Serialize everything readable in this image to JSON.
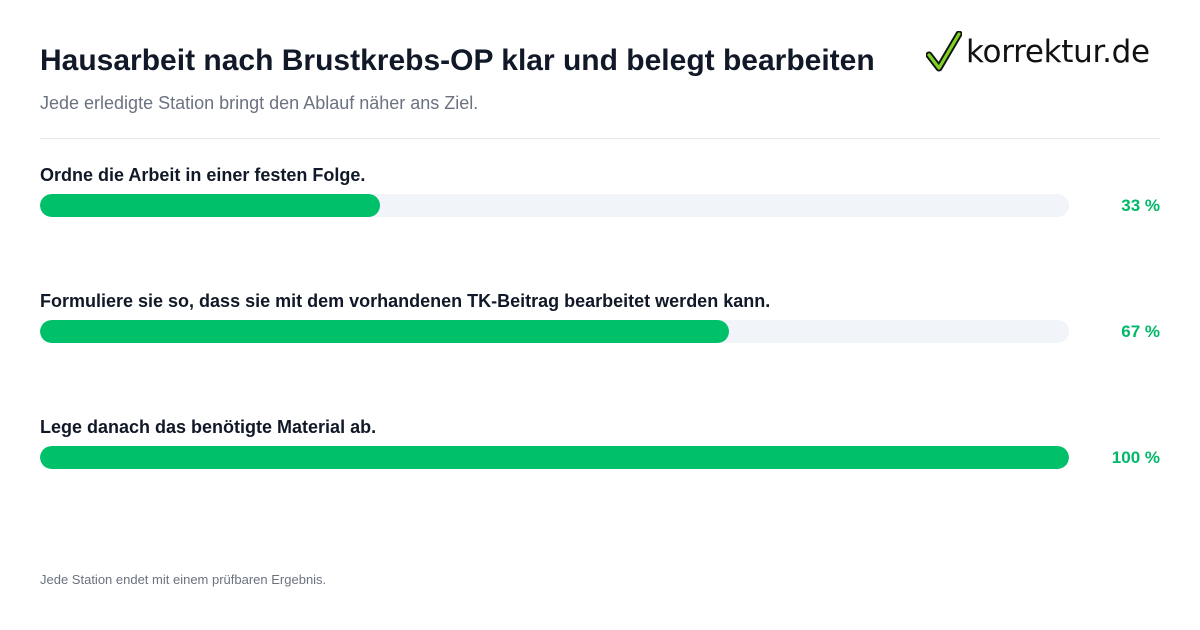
{
  "header": {
    "title": "Hausarbeit nach Brustkrebs-OP klar und belegt bearbeiten",
    "subtitle": "Jede erledigte Station bringt den Ablauf näher ans Ziel."
  },
  "logo": {
    "text": "korrektur.de",
    "icon": "checkmark-icon"
  },
  "steps": [
    {
      "label": "Ordne die Arbeit in einer festen Folge.",
      "progress": 0.33,
      "percent_label": "33 %"
    },
    {
      "label": "Formuliere sie so, dass sie mit dem vorhandenen TK-Beitrag bearbeitet werden kann.",
      "progress": 0.67,
      "percent_label": "67 %"
    },
    {
      "label": "Lege danach das benötigte Material ab.",
      "progress": 1.0,
      "percent_label": "100 %"
    }
  ],
  "footer": {
    "note": "Jede Station endet mit einem prüfbaren Ergebnis."
  },
  "colors": {
    "accent": "#00c16a",
    "track": "#f1f5f9",
    "text": "#111827",
    "muted": "#6b7280"
  }
}
